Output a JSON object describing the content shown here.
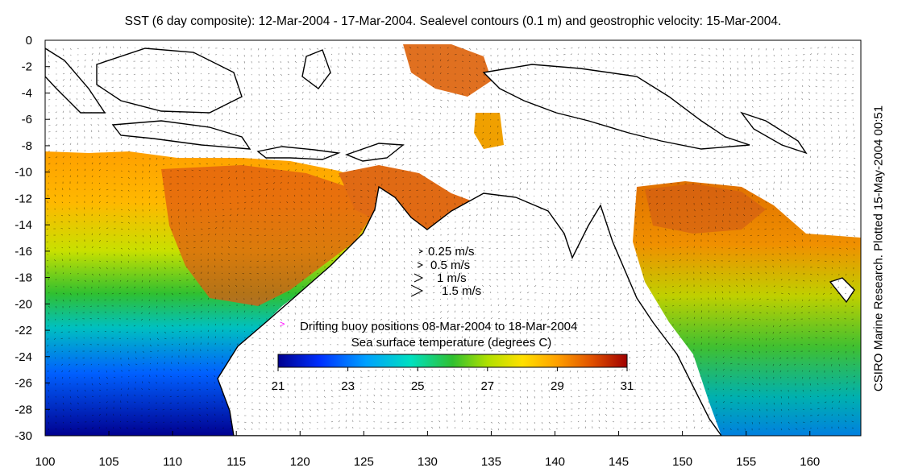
{
  "title": "SST (6 day composite): 12-Mar-2004 - 17-Mar-2004. Sealevel contours (0.1 m) and geostrophic velocity: 15-Mar-2004.",
  "credit": "CSIRO Marine Research. Plotted 15-May-2004 00:51",
  "map_extent": {
    "lon": [
      100,
      164
    ],
    "lat": [
      -30,
      0
    ]
  },
  "axes": {
    "x_ticks": [
      100,
      105,
      110,
      115,
      120,
      125,
      130,
      135,
      140,
      145,
      150,
      155,
      160
    ],
    "y_ticks": [
      0,
      -2,
      -4,
      -6,
      -8,
      -10,
      -12,
      -14,
      -16,
      -18,
      -20,
      -22,
      -24,
      -26,
      -28,
      -30
    ]
  },
  "velocity_legend": [
    {
      "label": "0.25 m/s",
      "scale": 0.25
    },
    {
      "label": "0.5 m/s",
      "scale": 0.5
    },
    {
      "label": "1 m/s",
      "scale": 1
    },
    {
      "label": "1.5 m/s",
      "scale": 1.5
    }
  ],
  "buoy_legend": {
    "label": "Drifting buoy positions 08-Mar-2004 to 18-Mar-2004",
    "marker": ">",
    "color": "#ff00ff"
  },
  "colorbar": {
    "title": "Sea surface temperature (degrees C)",
    "range": [
      21,
      31
    ],
    "tick_labels": [
      "21",
      "23",
      "25",
      "27",
      "29",
      "31"
    ],
    "colors": [
      "#00008f",
      "#0030ff",
      "#00a0ff",
      "#00e0c0",
      "#30c030",
      "#b0e000",
      "#ffe000",
      "#ffa000",
      "#e05000",
      "#a00000"
    ]
  },
  "colors": {
    "land": "#ffffff",
    "coast": "#000000",
    "contour": "#ffffff",
    "vector": "#000000"
  }
}
